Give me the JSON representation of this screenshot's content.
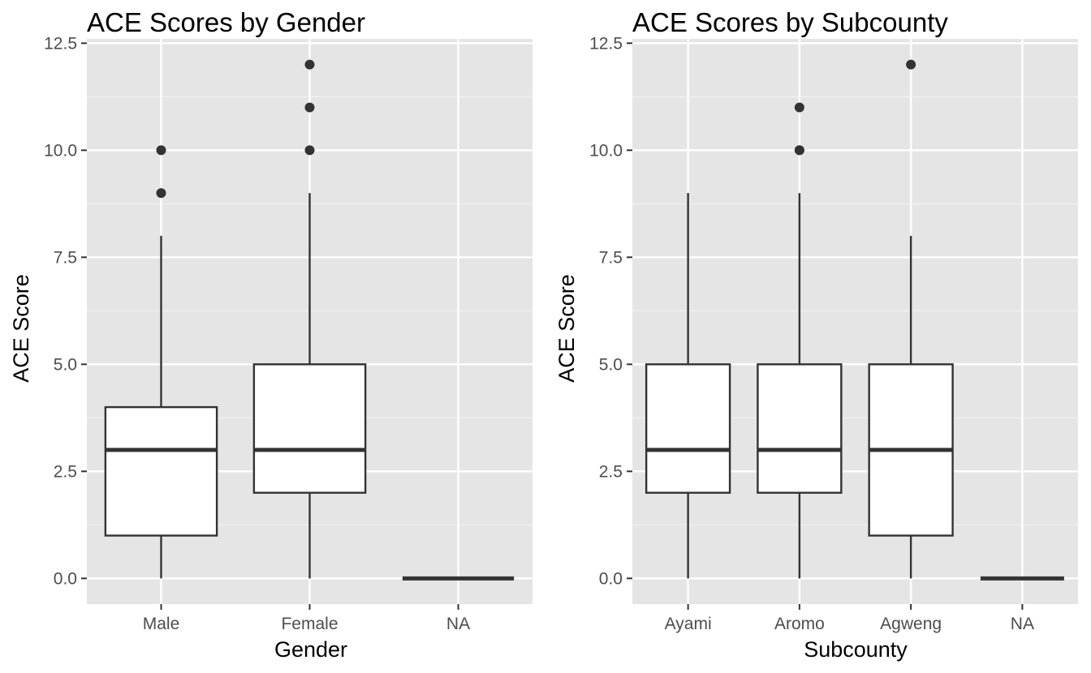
{
  "chart_data": [
    {
      "type": "box",
      "title": "ACE Scores by Gender",
      "xlabel": "Gender",
      "ylabel": "ACE Score",
      "ylim": [
        -0.6,
        12.6
      ],
      "yticks": [
        0,
        2.5,
        5,
        7.5,
        10,
        12.5
      ],
      "ytick_labels": [
        "0.0",
        "2.5",
        "5.0",
        "7.5",
        "10.0",
        "12.5"
      ],
      "grid": true,
      "categories": [
        "Male",
        "Female",
        "NA"
      ],
      "boxes": [
        {
          "category": "Male",
          "whisker_low": 0,
          "q1": 1,
          "median": 3,
          "q3": 4,
          "whisker_high": 8,
          "outliers": [
            9,
            10
          ]
        },
        {
          "category": "Female",
          "whisker_low": 0,
          "q1": 2,
          "median": 3,
          "q3": 5,
          "whisker_high": 9,
          "outliers": [
            10,
            11,
            12
          ]
        },
        {
          "category": "NA",
          "whisker_low": 0,
          "q1": 0,
          "median": 0,
          "q3": 0,
          "whisker_high": 0,
          "outliers": []
        }
      ]
    },
    {
      "type": "box",
      "title": "ACE Scores by Subcounty",
      "xlabel": "Subcounty",
      "ylabel": "ACE Score",
      "ylim": [
        -0.6,
        12.6
      ],
      "yticks": [
        0,
        2.5,
        5,
        7.5,
        10,
        12.5
      ],
      "ytick_labels": [
        "0.0",
        "2.5",
        "5.0",
        "7.5",
        "10.0",
        "12.5"
      ],
      "grid": true,
      "categories": [
        "Ayami",
        "Aromo",
        "Agweng",
        "NA"
      ],
      "boxes": [
        {
          "category": "Ayami",
          "whisker_low": 0,
          "q1": 2,
          "median": 3,
          "q3": 5,
          "whisker_high": 9,
          "outliers": []
        },
        {
          "category": "Aromo",
          "whisker_low": 0,
          "q1": 2,
          "median": 3,
          "q3": 5,
          "whisker_high": 9,
          "outliers": [
            10,
            10,
            11
          ]
        },
        {
          "category": "Agweng",
          "whisker_low": 0,
          "q1": 1,
          "median": 3,
          "q3": 5,
          "whisker_high": 8,
          "outliers": [
            12
          ]
        },
        {
          "category": "NA",
          "whisker_low": 0,
          "q1": 0,
          "median": 0,
          "q3": 0,
          "whisker_high": 0,
          "outliers": []
        }
      ]
    }
  ],
  "colors": {
    "panel_background": "#e5e5e5",
    "grid_major": "#ffffff",
    "grid_minor": "#f2f2f2",
    "box_fill": "#ffffff",
    "box_stroke": "#333333",
    "outlier": "#333333",
    "tick_text": "#4d4d4d"
  }
}
